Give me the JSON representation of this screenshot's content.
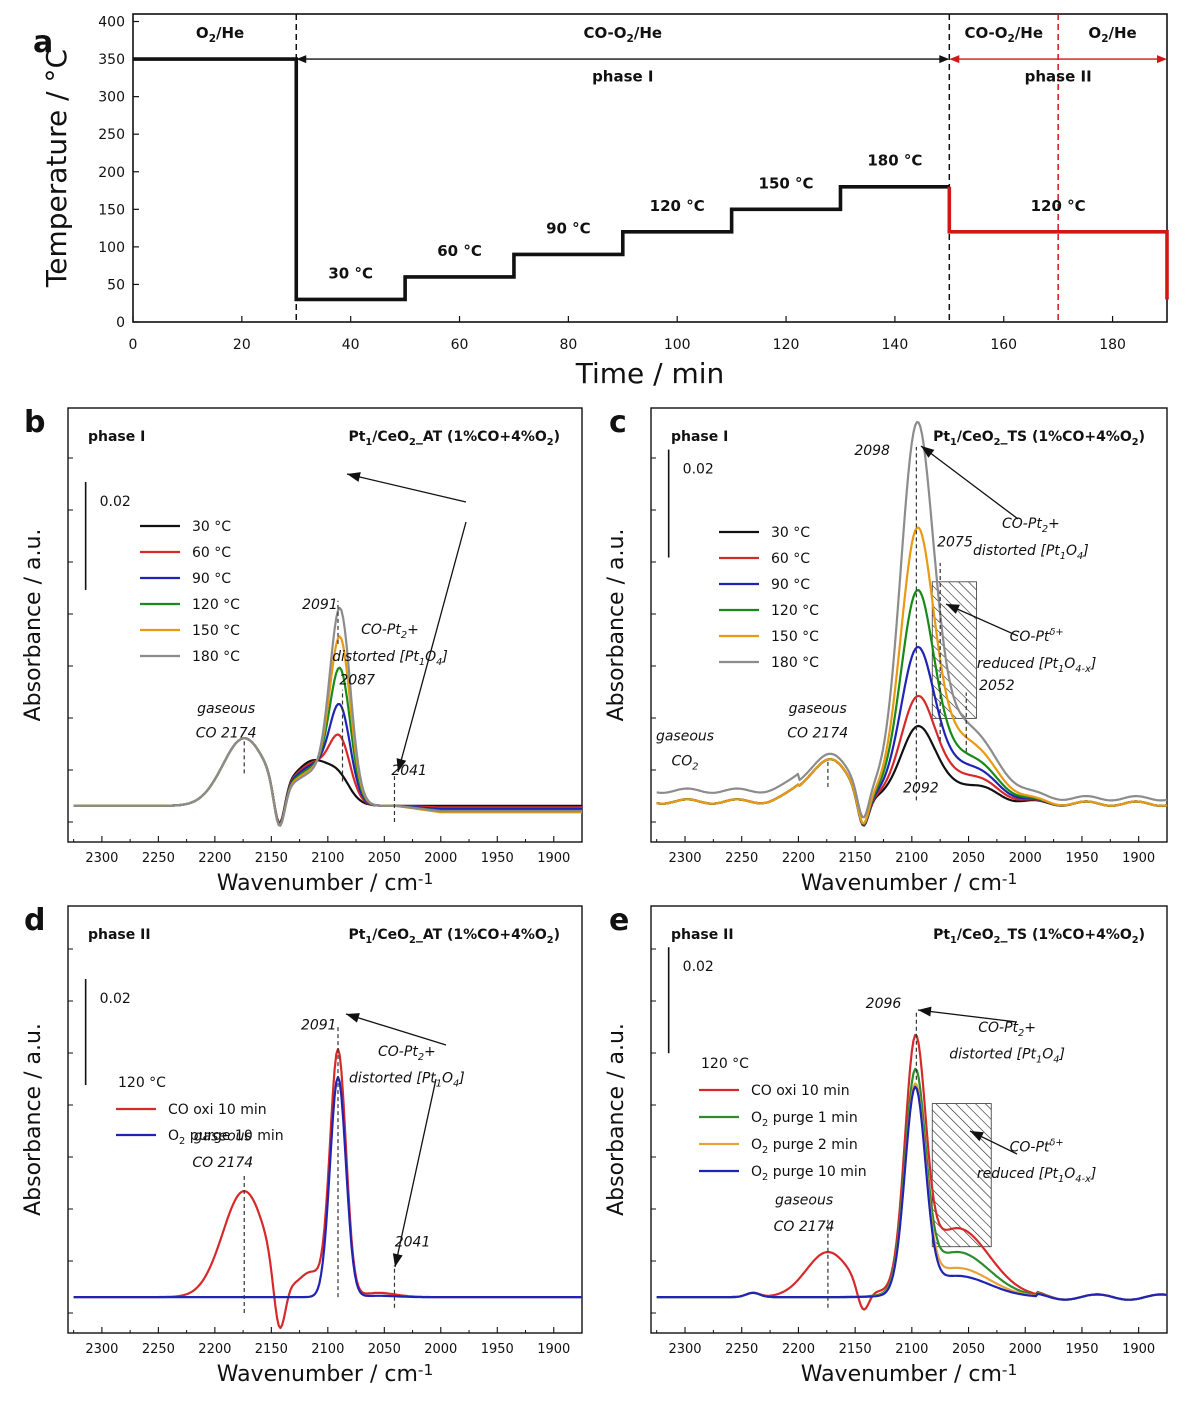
{
  "colors": {
    "black": "#111111",
    "red": "#d62a2a",
    "blue": "#1f24b5",
    "green": "#178a17",
    "orange": "#e89a12",
    "gray": "#8c8c8c",
    "redLine": "#d01818",
    "lightGreen": "#2e8b2e",
    "lightOrange": "#e8a23a"
  },
  "chart_data": [
    {
      "id": "a",
      "type": "line",
      "panel_letter": "a",
      "xlabel": "Time / min",
      "ylabel": "Temperature / °C",
      "xlim": [
        0,
        190
      ],
      "ylim": [
        0,
        410
      ],
      "xticks": [
        0,
        20,
        40,
        60,
        80,
        100,
        120,
        140,
        160,
        180
      ],
      "yticks": [
        0,
        50,
        100,
        150,
        200,
        250,
        300,
        350,
        400
      ],
      "series": [
        {
          "name": "phase I",
          "color": "black",
          "x": [
            0,
            30,
            30,
            50,
            50,
            70,
            70,
            90,
            90,
            110,
            110,
            130,
            130,
            150
          ],
          "y": [
            350,
            350,
            30,
            30,
            60,
            60,
            90,
            90,
            120,
            120,
            150,
            150,
            180,
            180
          ]
        },
        {
          "name": "phase II",
          "color": "redLine",
          "x": [
            150,
            150,
            190,
            190
          ],
          "y": [
            180,
            120,
            120,
            30
          ]
        }
      ],
      "dashed_verticals": [
        {
          "x": 30,
          "color": "black"
        },
        {
          "x": 150,
          "color": "black"
        },
        {
          "x": 170,
          "color": "redLine"
        }
      ],
      "annotations": [
        {
          "text": "O2/He",
          "x": 16,
          "y": 378,
          "color": "black"
        },
        {
          "text": "CO-O2/He",
          "x": 90,
          "y": 378,
          "color": "black"
        },
        {
          "text": "phase I",
          "x": 90,
          "y": 320,
          "color": "black"
        },
        {
          "text": "CO-O2/He",
          "x": 160,
          "y": 378,
          "color": "redLine"
        },
        {
          "text": "O2/He",
          "x": 180,
          "y": 378,
          "color": "redLine"
        },
        {
          "text": "phase II",
          "x": 170,
          "y": 320,
          "color": "redLine"
        },
        {
          "text": "30 °C",
          "x": 40,
          "y": 58,
          "color": "black"
        },
        {
          "text": "60 °C",
          "x": 60,
          "y": 88,
          "color": "black"
        },
        {
          "text": "90 °C",
          "x": 80,
          "y": 118,
          "color": "black"
        },
        {
          "text": "120 °C",
          "x": 100,
          "y": 148,
          "color": "black"
        },
        {
          "text": "150 °C",
          "x": 120,
          "y": 178,
          "color": "black"
        },
        {
          "text": "180 °C",
          "x": 140,
          "y": 208,
          "color": "black"
        },
        {
          "text": "120 °C",
          "x": 170,
          "y": 148,
          "color": "redLine"
        }
      ],
      "arrows": [
        {
          "x1": 30,
          "x2": 150,
          "y": 350,
          "color": "black"
        },
        {
          "x1": 150,
          "x2": 190,
          "y": 350,
          "color": "redLine"
        }
      ]
    },
    {
      "id": "b",
      "type": "line",
      "panel_letter": "b",
      "title_left": "phase I",
      "title_right": "Pt1/CeO2_AT (1%CO+4%O2)",
      "xlabel": "Wavenumber / cm-1",
      "ylabel": "Absorbance / a.u.",
      "xlim": [
        2330,
        1875
      ],
      "ylim": [
        -0.003,
        0.07
      ],
      "xticks": [
        2300,
        2250,
        2200,
        2150,
        2100,
        2050,
        2000,
        1950,
        1900
      ],
      "scale_bar": {
        "label": "0.02",
        "value": 0.02,
        "x": 2325,
        "y_top": 0.06
      },
      "legend": [
        "30 °C",
        "60 °C",
        "90 °C",
        "120 °C",
        "150 °C",
        "180 °C"
      ],
      "series": [
        {
          "name": "30 °C",
          "color": "black",
          "peak": 0.0025,
          "peak2": 0.0,
          "tail": 0.0
        },
        {
          "name": "60 °C",
          "color": "red",
          "peak": 0.0095,
          "peak2": 0.0,
          "tail": -0.0003
        },
        {
          "name": "90 °C",
          "color": "blue",
          "peak": 0.0155,
          "peak2": 0.0,
          "tail": -0.0006
        },
        {
          "name": "120 °C",
          "color": "green",
          "peak": 0.0225,
          "peak2": 0.0,
          "tail": -0.0009
        },
        {
          "name": "150 °C",
          "color": "orange",
          "peak": 0.0285,
          "peak2": 0.0,
          "tail": -0.0012
        },
        {
          "name": "180 °C",
          "color": "gray",
          "peak": 0.034,
          "peak2": 0.0,
          "tail": -0.001
        }
      ],
      "gas_co": 0.0125,
      "peak_center": 2089,
      "peak_width": 9,
      "shoulder": {
        "center": 2112,
        "amp": 0.0085,
        "width": 18
      },
      "annotations": [
        {
          "text": "2091",
          "x": 2107,
          "y": 0.0365
        },
        {
          "text": "2087",
          "x": 2074,
          "y": 0.0225
        },
        {
          "text": "CO-Pt2+",
          "x": 2045,
          "y": 0.0318
        },
        {
          "text": "distorted [Pt1O4]",
          "x": 2045,
          "y": 0.0268
        },
        {
          "text": "gaseous",
          "x": 2190,
          "y": 0.0172
        },
        {
          "text": "CO 2174",
          "x": 2190,
          "y": 0.0127
        },
        {
          "text": "2041",
          "x": 2028,
          "y": 0.0057
        }
      ],
      "dotted_lines": [
        {
          "x": 2174,
          "y1": 0.006,
          "y2": 0.012
        },
        {
          "x": 2091,
          "y1": 0.03,
          "y2": 0.038
        },
        {
          "x": 2087,
          "y1": 0.0045,
          "y2": 0.0215
        },
        {
          "x": 2041,
          "y1": -0.003,
          "y2": 0.0055
        }
      ]
    },
    {
      "id": "c",
      "type": "line",
      "panel_letter": "c",
      "title_left": "phase I",
      "title_right": "Pt1/CeO2_TS (1%CO+4%O2)",
      "xlabel": "Wavenumber / cm-1",
      "ylabel": "Absorbance / a.u.",
      "xlim": [
        2330,
        1875
      ],
      "ylim": [
        -0.003,
        0.07
      ],
      "xticks": [
        2300,
        2250,
        2200,
        2150,
        2100,
        2050,
        2000,
        1950,
        1900
      ],
      "scale_bar": {
        "label": "0.02",
        "value": 0.02,
        "x": 2325,
        "y_top": 0.066
      },
      "legend": [
        "30 °C",
        "60 °C",
        "90 °C",
        "120 °C",
        "150 °C",
        "180 °C"
      ],
      "series": [
        {
          "name": "30 °C",
          "color": "black",
          "peak": 0.0125,
          "peak2": 0.004
        },
        {
          "name": "60 °C",
          "color": "red",
          "peak": 0.017,
          "peak2": 0.006
        },
        {
          "name": "90 °C",
          "color": "blue",
          "peak": 0.025,
          "peak2": 0.008
        },
        {
          "name": "120 °C",
          "color": "green",
          "peak": 0.0345,
          "peak2": 0.01
        },
        {
          "name": "150 °C",
          "color": "orange",
          "peak": 0.0445,
          "peak2": 0.013
        },
        {
          "name": "180 °C",
          "color": "gray",
          "peak": 0.062,
          "peak2": 0.015
        }
      ],
      "gas_co": 0.008,
      "peak_center": 2096,
      "peak_width": 14,
      "annotations": [
        {
          "text": "2098",
          "x": 2135,
          "y": 0.065
        },
        {
          "text": "2075",
          "x": 2062,
          "y": 0.048
        },
        {
          "text": "2052",
          "x": 2025,
          "y": 0.0215
        },
        {
          "text": "2092",
          "x": 2092,
          "y": 0.0025
        },
        {
          "text": "CO-Pt2+",
          "x": 1995,
          "y": 0.0515
        },
        {
          "text": "distorted [Pt1O4]",
          "x": 1995,
          "y": 0.0465
        },
        {
          "text": "CO-Ptδ+",
          "x": 1990,
          "y": 0.0305
        },
        {
          "text": "reduced [Pt1O4-x]",
          "x": 1990,
          "y": 0.0255
        },
        {
          "text": "gaseous",
          "x": 2183,
          "y": 0.0172
        },
        {
          "text": "CO 2174",
          "x": 2183,
          "y": 0.0127
        },
        {
          "text": "gaseous",
          "x": 2300,
          "y": 0.0121
        },
        {
          "text": "CO2",
          "x": 2300,
          "y": 0.0075
        }
      ],
      "hatch_box": {
        "x1": 2082,
        "x2": 2043,
        "y1": 0.0162,
        "y2": 0.0415
      },
      "dotted_lines": [
        {
          "x": 2174,
          "y1": 0.0035,
          "y2": 0.0085
        },
        {
          "x": 2096,
          "y1": 0.001,
          "y2": 0.0665
        },
        {
          "x": 2075,
          "y1": 0.012,
          "y2": 0.045
        },
        {
          "x": 2052,
          "y1": 0.01,
          "y2": 0.021
        }
      ]
    },
    {
      "id": "d",
      "type": "line",
      "panel_letter": "d",
      "title_left": "phase II",
      "title_right": "Pt1/CeO2_AT (1%CO+4%O2)",
      "xlabel": "Wavenumber / cm-1",
      "ylabel": "Absorbance / a.u.",
      "xlim": [
        2330,
        1875
      ],
      "ylim": [
        -0.003,
        0.07
      ],
      "xticks": [
        2300,
        2250,
        2200,
        2150,
        2100,
        2050,
        2000,
        1950,
        1900
      ],
      "scale_bar": {
        "label": "0.02",
        "value": 0.02,
        "x": 2325,
        "y_top": 0.06
      },
      "legend_title": "120 °C",
      "legend": [
        "CO oxi 10 min",
        "O2 purge 10 min"
      ],
      "series": [
        {
          "name": "CO oxi 10 min",
          "color": "red",
          "peak": 0.0465,
          "gas": 0.02
        },
        {
          "name": "O2 purge 10 min",
          "color": "blue",
          "peak": 0.0415,
          "gas": 0.0
        }
      ],
      "peak_center": 2091,
      "peak_width": 7,
      "annotations": [
        {
          "text": "2091",
          "x": 2108,
          "y": 0.0505
        },
        {
          "text": "CO-Pt2+",
          "x": 2030,
          "y": 0.0455
        },
        {
          "text": "distorted [Pt1O4]",
          "x": 2030,
          "y": 0.0405
        },
        {
          "text": "gaseous",
          "x": 2193,
          "y": 0.0295
        },
        {
          "text": "CO 2174",
          "x": 2193,
          "y": 0.0245
        },
        {
          "text": "2041",
          "x": 2025,
          "y": 0.0095
        }
      ],
      "dotted_lines": [
        {
          "x": 2174,
          "y1": -0.003,
          "y2": 0.023
        },
        {
          "x": 2091,
          "y1": 0.0,
          "y2": 0.0515
        },
        {
          "x": 2041,
          "y1": -0.002,
          "y2": 0.006
        }
      ]
    },
    {
      "id": "e",
      "type": "line",
      "panel_letter": "e",
      "title_left": "phase II",
      "title_right": "Pt1/CeO2_TS (1%CO+4%O2)",
      "xlabel": "Wavenumber / cm-1",
      "ylabel": "Absorbance / a.u.",
      "xlim": [
        2330,
        1875
      ],
      "ylim": [
        -0.003,
        0.07
      ],
      "xticks": [
        2300,
        2250,
        2200,
        2150,
        2100,
        2050,
        2000,
        1950,
        1900
      ],
      "scale_bar": {
        "label": "0.02",
        "value": 0.02,
        "x": 2325,
        "y_top": 0.066
      },
      "legend_title": "120 °C",
      "legend": [
        "CO oxi 10 min",
        "O2 purge 1 min",
        "O2 purge 2 min",
        "O2 purge 10 min"
      ],
      "series": [
        {
          "name": "CO oxi 10 min",
          "color": "red",
          "peak": 0.044,
          "peak2": 0.013,
          "gas": 0.0085
        },
        {
          "name": "O2 purge 1 min",
          "color": "lightGreen",
          "peak": 0.0395,
          "peak2": 0.0085,
          "gas": 0.0
        },
        {
          "name": "O2 purge 2 min",
          "color": "lightOrange",
          "peak": 0.038,
          "peak2": 0.0055,
          "gas": 0.0
        },
        {
          "name": "O2 purge 10 min",
          "color": "blue",
          "peak": 0.038,
          "peak2": 0.004,
          "gas": 0.0
        }
      ],
      "peak_center": 2097,
      "peak_width": 9,
      "annotations": [
        {
          "text": "2096",
          "x": 2125,
          "y": 0.0545
        },
        {
          "text": "CO-Pt2+",
          "x": 2016,
          "y": 0.05
        },
        {
          "text": "distorted [Pt1O4]",
          "x": 2016,
          "y": 0.045
        },
        {
          "text": "CO-Ptδ+",
          "x": 1990,
          "y": 0.0275
        },
        {
          "text": "reduced [Pt1O4-x]",
          "x": 1990,
          "y": 0.0225
        },
        {
          "text": "gaseous",
          "x": 2195,
          "y": 0.0175
        },
        {
          "text": "CO 2174",
          "x": 2195,
          "y": 0.0125
        }
      ],
      "hatch_box": {
        "x1": 2082,
        "x2": 2030,
        "y1": 0.0095,
        "y2": 0.0365
      },
      "dotted_lines": [
        {
          "x": 2174,
          "y1": -0.002,
          "y2": 0.015
        },
        {
          "x": 2096,
          "y1": 0.041,
          "y2": 0.054
        }
      ]
    }
  ]
}
